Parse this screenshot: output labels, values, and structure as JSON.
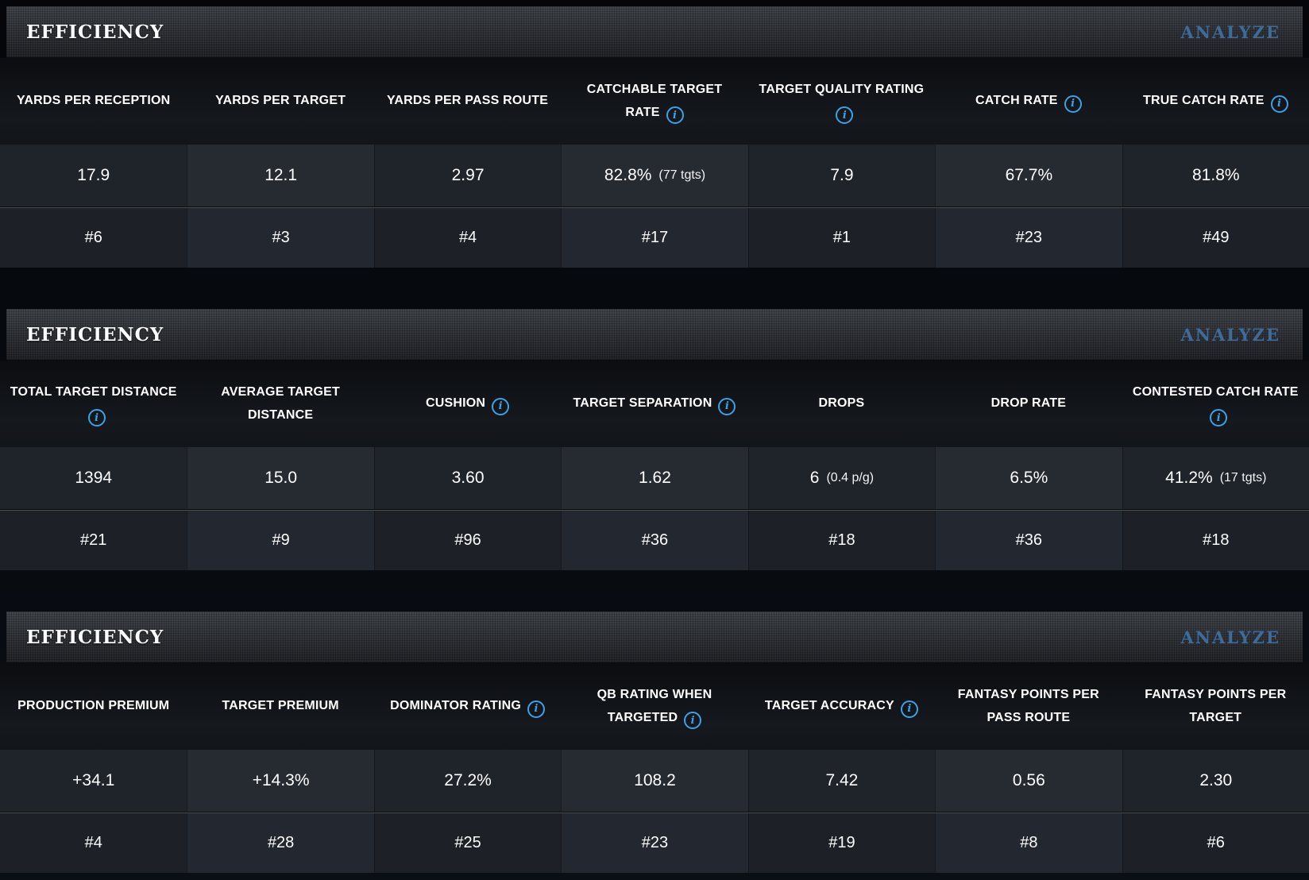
{
  "colors": {
    "analyze_link": "#3d6c9b",
    "info_icon": "#3ba2e6",
    "panel_title": "#fafbfc"
  },
  "icons": {
    "info_glyph": "i"
  },
  "sections": [
    {
      "title": "EFFICIENCY",
      "analyze_label": "ANALYZE",
      "columns": [
        {
          "label": "YARDS PER RECEPTION",
          "has_info": false,
          "value": "17.9",
          "note": "",
          "rank": "#6"
        },
        {
          "label": "YARDS PER TARGET",
          "has_info": false,
          "value": "12.1",
          "note": "",
          "rank": "#3"
        },
        {
          "label": "YARDS PER PASS ROUTE",
          "has_info": false,
          "value": "2.97",
          "note": "",
          "rank": "#4"
        },
        {
          "label": "CATCHABLE TARGET RATE",
          "has_info": true,
          "value": "82.8%",
          "note": "(77 tgts)",
          "rank": "#17"
        },
        {
          "label": "TARGET QUALITY RATING",
          "has_info": true,
          "value": "7.9",
          "note": "",
          "rank": "#1"
        },
        {
          "label": "CATCH RATE",
          "has_info": true,
          "value": "67.7%",
          "note": "",
          "rank": "#23"
        },
        {
          "label": "TRUE CATCH RATE",
          "has_info": true,
          "value": "81.8%",
          "note": "",
          "rank": "#49"
        }
      ]
    },
    {
      "title": "EFFICIENCY",
      "analyze_label": "ANALYZE",
      "columns": [
        {
          "label": "TOTAL TARGET DISTANCE",
          "has_info": true,
          "value": "1394",
          "note": "",
          "rank": "#21"
        },
        {
          "label": "AVERAGE TARGET DISTANCE",
          "has_info": false,
          "value": "15.0",
          "note": "",
          "rank": "#9"
        },
        {
          "label": "CUSHION",
          "has_info": true,
          "value": "3.60",
          "note": "",
          "rank": "#96"
        },
        {
          "label": "TARGET SEPARATION",
          "has_info": true,
          "value": "1.62",
          "note": "",
          "rank": "#36"
        },
        {
          "label": "DROPS",
          "has_info": false,
          "value": "6",
          "note": "(0.4 p/g)",
          "rank": "#18"
        },
        {
          "label": "DROP RATE",
          "has_info": false,
          "value": "6.5%",
          "note": "",
          "rank": "#36"
        },
        {
          "label": "CONTESTED CATCH RATE",
          "has_info": true,
          "value": "41.2%",
          "note": "(17 tgts)",
          "rank": "#18"
        }
      ]
    },
    {
      "title": "EFFICIENCY",
      "analyze_label": "ANALYZE",
      "columns": [
        {
          "label": "PRODUCTION PREMIUM",
          "has_info": false,
          "value": "+34.1",
          "note": "",
          "rank": "#4"
        },
        {
          "label": "TARGET PREMIUM",
          "has_info": false,
          "value": "+14.3%",
          "note": "",
          "rank": "#28"
        },
        {
          "label": "DOMINATOR RATING",
          "has_info": true,
          "value": "27.2%",
          "note": "",
          "rank": "#25"
        },
        {
          "label": "QB RATING WHEN TARGETED",
          "has_info": true,
          "value": "108.2",
          "note": "",
          "rank": "#23"
        },
        {
          "label": "TARGET ACCURACY",
          "has_info": true,
          "value": "7.42",
          "note": "",
          "rank": "#19"
        },
        {
          "label": "FANTASY POINTS PER PASS ROUTE",
          "has_info": false,
          "value": "0.56",
          "note": "",
          "rank": "#8"
        },
        {
          "label": "FANTASY POINTS PER TARGET",
          "has_info": false,
          "value": "2.30",
          "note": "",
          "rank": "#6"
        }
      ]
    }
  ]
}
